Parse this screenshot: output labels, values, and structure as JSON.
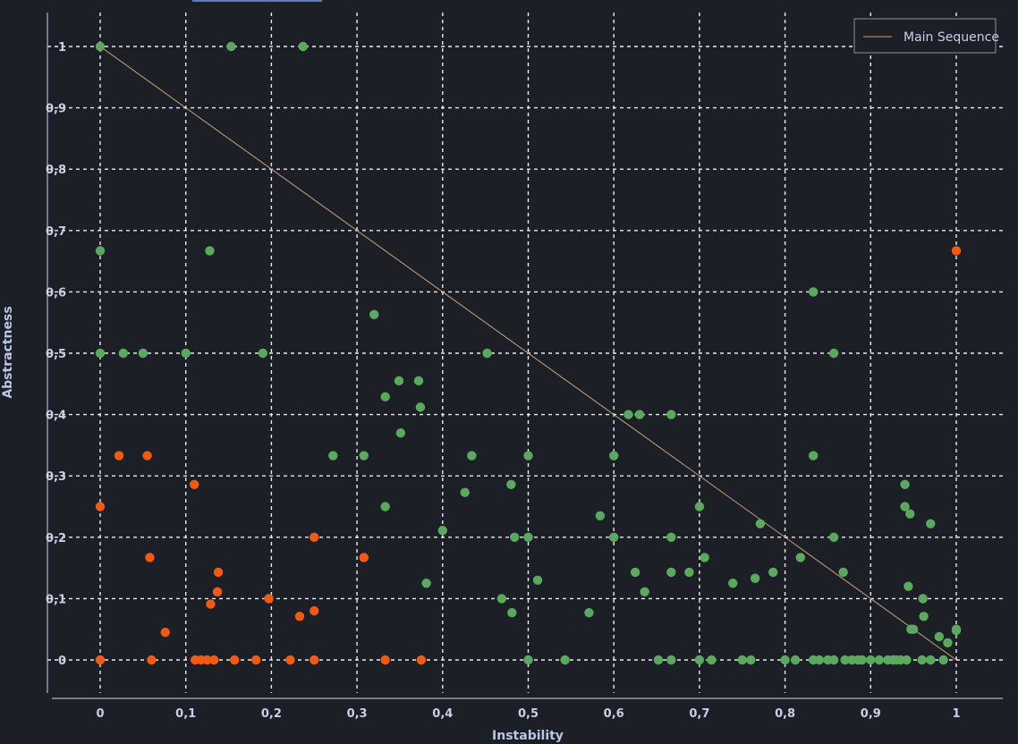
{
  "chart_data": {
    "type": "scatter",
    "title": "",
    "xlabel": "Instability",
    "ylabel": "Abstractness",
    "xlim": [
      -0.05,
      1.05
    ],
    "ylim": [
      -0.05,
      1.05
    ],
    "grid": true,
    "tick_labels": [
      "0",
      "0,1",
      "0,2",
      "0,3",
      "0,4",
      "0,5",
      "0,6",
      "0,7",
      "0,8",
      "0,9",
      "1"
    ],
    "tick_values": [
      0,
      0.1,
      0.2,
      0.3,
      0.4,
      0.5,
      0.6,
      0.7,
      0.8,
      0.9,
      1
    ],
    "colors": {
      "green": "#5aa95f",
      "orange": "#f25a14",
      "line": "#c9a27a"
    },
    "legend": {
      "position": "top-right",
      "entries": [
        "Main Sequence"
      ]
    },
    "main_sequence": {
      "name": "Main Sequence",
      "x": [
        0,
        1
      ],
      "y": [
        1,
        0
      ]
    },
    "series": [
      {
        "name": "green",
        "points": [
          [
            0,
            1
          ],
          [
            0.153,
            1
          ],
          [
            0.237,
            1
          ],
          [
            0,
            0.667
          ],
          [
            0.128,
            0.667
          ],
          [
            0,
            0.5
          ],
          [
            0.027,
            0.5
          ],
          [
            0.05,
            0.5
          ],
          [
            0.1,
            0.5
          ],
          [
            0.19,
            0.5
          ],
          [
            0.32,
            0.563
          ],
          [
            0.333,
            0.429
          ],
          [
            0.349,
            0.455
          ],
          [
            0.351,
            0.37
          ],
          [
            0.372,
            0.455
          ],
          [
            0.374,
            0.412
          ],
          [
            0.272,
            0.333
          ],
          [
            0.308,
            0.333
          ],
          [
            0.333,
            0.25
          ],
          [
            0.381,
            0.125
          ],
          [
            0.4,
            0.211
          ],
          [
            0.426,
            0.273
          ],
          [
            0.434,
            0.333
          ],
          [
            0.452,
            0.5
          ],
          [
            0.469,
            0.1
          ],
          [
            0.48,
            0.286
          ],
          [
            0.481,
            0.077
          ],
          [
            0.484,
            0.2
          ],
          [
            0.5,
            0.333
          ],
          [
            0.5,
            0.2
          ],
          [
            0.5,
            0
          ],
          [
            0.511,
            0.13
          ],
          [
            0.543,
            0
          ],
          [
            0.571,
            0.077
          ],
          [
            0.584,
            0.235
          ],
          [
            0.6,
            0.333
          ],
          [
            0.6,
            0.2
          ],
          [
            0.617,
            0.4
          ],
          [
            0.625,
            0.143
          ],
          [
            0.63,
            0.4
          ],
          [
            0.636,
            0.111
          ],
          [
            0.652,
            0
          ],
          [
            0.667,
            0.4
          ],
          [
            0.667,
            0.2
          ],
          [
            0.667,
            0.143
          ],
          [
            0.667,
            0
          ],
          [
            0.688,
            0.143
          ],
          [
            0.7,
            0.25
          ],
          [
            0.7,
            0
          ],
          [
            0.706,
            0.167
          ],
          [
            0.714,
            0
          ],
          [
            0.739,
            0.125
          ],
          [
            0.75,
            0
          ],
          [
            0.76,
            0
          ],
          [
            0.765,
            0.133
          ],
          [
            0.771,
            0.222
          ],
          [
            0.786,
            0.143
          ],
          [
            0.8,
            0
          ],
          [
            0.812,
            0
          ],
          [
            0.818,
            0.167
          ],
          [
            0.833,
            0.6
          ],
          [
            0.833,
            0.333
          ],
          [
            0.833,
            0
          ],
          [
            0.84,
            0
          ],
          [
            0.85,
            0
          ],
          [
            0.857,
            0.5
          ],
          [
            0.857,
            0.2
          ],
          [
            0.857,
            0
          ],
          [
            0.868,
            0.143
          ],
          [
            0.87,
            0
          ],
          [
            0.878,
            0
          ],
          [
            0.885,
            0
          ],
          [
            0.89,
            0
          ],
          [
            0.9,
            0
          ],
          [
            0.91,
            0
          ],
          [
            0.92,
            0
          ],
          [
            0.926,
            0
          ],
          [
            0.93,
            0
          ],
          [
            0.935,
            0
          ],
          [
            0.94,
            0.286
          ],
          [
            0.94,
            0.25
          ],
          [
            0.942,
            0
          ],
          [
            0.944,
            0.12
          ],
          [
            0.946,
            0.238
          ],
          [
            0.947,
            0.05
          ],
          [
            0.95,
            0.05
          ],
          [
            0.96,
            0
          ],
          [
            0.961,
            0.1
          ],
          [
            0.962,
            0.071
          ],
          [
            0.97,
            0.222
          ],
          [
            0.97,
            0
          ],
          [
            0.98,
            0.038
          ],
          [
            0.985,
            0
          ],
          [
            0.99,
            0.028
          ],
          [
            1,
            0.048
          ],
          [
            1,
            0.05
          ]
        ]
      },
      {
        "name": "orange",
        "points": [
          [
            0,
            0.25
          ],
          [
            0,
            0
          ],
          [
            0.022,
            0.333
          ],
          [
            0.055,
            0.333
          ],
          [
            0.058,
            0.167
          ],
          [
            0.06,
            0
          ],
          [
            0.076,
            0.045
          ],
          [
            0.11,
            0.286
          ],
          [
            0.111,
            0
          ],
          [
            0.118,
            0
          ],
          [
            0.125,
            0
          ],
          [
            0.129,
            0.091
          ],
          [
            0.133,
            0
          ],
          [
            0.137,
            0.111
          ],
          [
            0.138,
            0.143
          ],
          [
            0.157,
            0
          ],
          [
            0.182,
            0
          ],
          [
            0.197,
            0.1
          ],
          [
            0.222,
            0
          ],
          [
            0.233,
            0.071
          ],
          [
            0.25,
            0.2
          ],
          [
            0.25,
            0.08
          ],
          [
            0.25,
            0
          ],
          [
            0.308,
            0.167
          ],
          [
            0.333,
            0
          ],
          [
            0.375,
            0
          ],
          [
            1,
            0.667
          ]
        ]
      }
    ]
  }
}
